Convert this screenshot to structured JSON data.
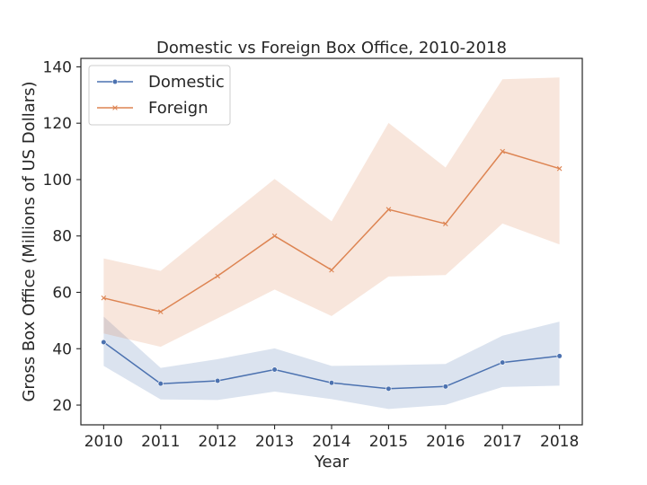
{
  "chart_data": {
    "type": "line",
    "title": "Domestic vs Foreign Box Office, 2010-2018",
    "xlabel": "Year",
    "ylabel": "Gross Box Office (Millions of US Dollars)",
    "x": [
      "2010",
      "2011",
      "2012",
      "2013",
      "2014",
      "2015",
      "2016",
      "2017",
      "2018"
    ],
    "xlim": [
      2009.6,
      2018.4
    ],
    "ylim": [
      13,
      143
    ],
    "yticks": [
      20,
      40,
      60,
      80,
      100,
      120,
      140
    ],
    "grid": false,
    "legend_position": "top-left",
    "series": [
      {
        "name": "Domestic",
        "color": "#4c72b0",
        "marker": "circle",
        "values": [
          42.3,
          27.6,
          28.6,
          32.6,
          27.9,
          25.8,
          26.6,
          35.1,
          37.4
        ],
        "ci_lower": [
          33.9,
          22.0,
          21.8,
          24.8,
          22.1,
          18.6,
          20.1,
          26.4,
          26.9
        ],
        "ci_upper": [
          51.4,
          33.2,
          36.3,
          40.1,
          33.9,
          34.2,
          34.6,
          44.6,
          49.6
        ]
      },
      {
        "name": "Foreign",
        "color": "#dd8452",
        "marker": "x",
        "values": [
          58.0,
          53.1,
          65.8,
          80.0,
          67.9,
          89.4,
          84.3,
          110.0,
          103.9
        ],
        "ci_lower": [
          45.4,
          40.7,
          50.8,
          61.0,
          51.6,
          65.6,
          66.1,
          84.4,
          77.0
        ],
        "ci_upper": [
          72.0,
          67.6,
          84.0,
          100.2,
          85.2,
          120.1,
          104.3,
          135.6,
          136.2
        ]
      }
    ]
  }
}
